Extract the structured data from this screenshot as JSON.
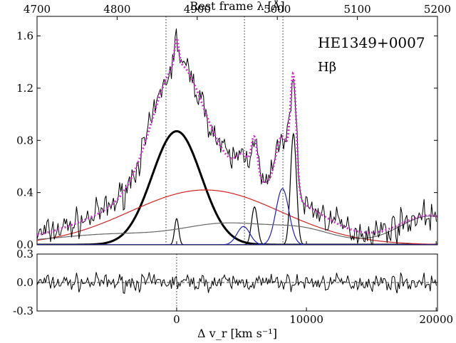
{
  "chart_data": {
    "type": "line",
    "object_label": "HE1349+0007",
    "line_label": "Hβ",
    "top_axis": {
      "title": "Rest frame λ [Å]",
      "range": [
        4700,
        5200
      ],
      "ticks": [
        "4700",
        "4800",
        "4900",
        "5000",
        "5100",
        "5200"
      ]
    },
    "bottom_axis": {
      "title": "Δ v_r [km s⁻¹]",
      "range": [
        -10760,
        20100
      ],
      "ticks": [
        "0",
        "10000",
        "20000"
      ]
    },
    "main_y": {
      "range": [
        0,
        1.75
      ],
      "ticks": [
        "0.0",
        "0.4",
        "0.8",
        "1.2",
        "1.6"
      ]
    },
    "resid_y": {
      "range": [
        -0.3,
        0.3
      ],
      "ticks": [
        "-0.3",
        "0.0",
        "0.3"
      ]
    },
    "reference_lines_lambda": [
      4861,
      4959,
      5007
    ],
    "colors": {
      "observed": "#000000",
      "fit": "#cc33cc",
      "broad": "#000000",
      "very_broad": "#cc2222",
      "narrow": "#000000",
      "oiii_wing": "#1f1fb4",
      "feii": "#666666"
    },
    "series": [
      {
        "name": "Observed spectrum",
        "role": "observed"
      },
      {
        "name": "Total fit",
        "role": "fit"
      },
      {
        "name": "Hβ broad component",
        "role": "gauss",
        "center_v": 0,
        "amp": 0.87,
        "sigma_v": 1900,
        "color_key": "broad",
        "width": 3
      },
      {
        "name": "Hβ very broad component",
        "role": "gauss",
        "center_v": 2200,
        "amp": 0.42,
        "sigma_v": 5800,
        "color_key": "very_broad",
        "width": 1.2
      },
      {
        "name": "Hβ narrow component",
        "role": "gauss",
        "center_v": 0,
        "amp": 0.2,
        "sigma_v": 160,
        "color_key": "narrow",
        "width": 1.2
      },
      {
        "name": "[OIII] 4959 narrow",
        "role": "gauss",
        "center_v": 6000,
        "amp": 0.29,
        "sigma_v": 230,
        "color_key": "narrow",
        "width": 1.2
      },
      {
        "name": "[OIII] 5007 narrow",
        "role": "gauss",
        "center_v": 9000,
        "amp": 0.85,
        "sigma_v": 230,
        "color_key": "narrow",
        "width": 1.2
      },
      {
        "name": "[OIII] 4959 semibroad",
        "role": "gauss",
        "center_v": 5150,
        "amp": 0.14,
        "sigma_v": 500,
        "color_key": "oiii_wing",
        "width": 1.2
      },
      {
        "name": "[OIII] 5007 semibroad",
        "role": "gauss",
        "center_v": 8150,
        "amp": 0.43,
        "sigma_v": 500,
        "color_key": "oiii_wing",
        "width": 1.2
      },
      {
        "name": "FeII template",
        "role": "feii",
        "color_key": "feii",
        "width": 1.2
      }
    ],
    "residual": {
      "name": "Residuals",
      "role": "residual"
    }
  }
}
